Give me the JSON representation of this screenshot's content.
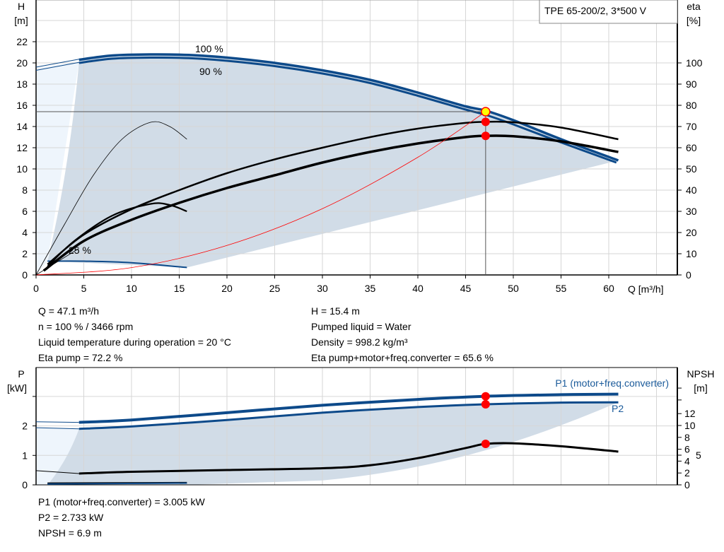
{
  "title": "TPE 65-200/2, 3*500 V",
  "chart_data": [
    {
      "type": "line",
      "xlabel": "Q [m³/h]",
      "ylabel": "H\n[m]",
      "y2label": "eta\n[%]",
      "xlim": [
        0,
        67.2
      ],
      "ylim": [
        0,
        25.9
      ],
      "y2lim": [
        0,
        129.5
      ],
      "xticks": [
        0,
        5,
        10,
        15,
        20,
        25,
        30,
        35,
        40,
        45,
        50,
        55,
        60
      ],
      "yticks": [
        0,
        2,
        4,
        6,
        8,
        10,
        12,
        14,
        16,
        18,
        20,
        22
      ],
      "y2ticks": [
        0,
        10,
        20,
        30,
        40,
        50,
        60,
        70,
        80,
        90,
        100
      ],
      "grid": true,
      "annotations": [
        "100 %",
        "90 %",
        "25 %"
      ],
      "series": [
        {
          "id": "head-100",
          "axis": "H",
          "x": [
            4.5,
            8,
            12,
            16,
            20,
            25,
            30,
            35,
            40,
            45,
            47.1,
            50,
            55,
            61
          ],
          "y": [
            20.3,
            20.7,
            20.8,
            20.75,
            20.5,
            20.0,
            19.3,
            18.4,
            17.2,
            15.9,
            15.5,
            14.6,
            12.8,
            10.8
          ]
        },
        {
          "id": "head-90",
          "axis": "H",
          "x": [
            4.5,
            8,
            12,
            16,
            20,
            25,
            30,
            35,
            40,
            45,
            47.1,
            50,
            55,
            60.8
          ],
          "y": [
            20.0,
            20.4,
            20.5,
            20.45,
            20.2,
            19.7,
            19.0,
            18.1,
            16.9,
            15.6,
            15.1,
            14.2,
            12.5,
            10.6
          ]
        },
        {
          "id": "head-25",
          "axis": "H",
          "x": [
            1.2,
            5,
            10,
            15.8
          ],
          "y": [
            1.3,
            1.3,
            1.15,
            0.7
          ]
        },
        {
          "id": "eta-pump",
          "axis": "eta",
          "x": [
            1.2,
            5,
            10,
            15,
            20,
            25,
            30,
            35,
            40,
            45,
            47.1,
            50,
            55,
            61
          ],
          "y": [
            5,
            19,
            31,
            40,
            48,
            54.5,
            60,
            65,
            69,
            71.7,
            72.2,
            72,
            69.5,
            64
          ]
        },
        {
          "id": "eta-total",
          "axis": "eta",
          "x": [
            0.8,
            5,
            10,
            15,
            20,
            25,
            30,
            35,
            40,
            45,
            47.1,
            50,
            55,
            61
          ],
          "y": [
            2,
            16,
            26,
            34,
            41,
            47,
            53,
            58,
            62,
            65,
            65.6,
            65.4,
            63,
            58
          ]
        },
        {
          "id": "eta-25-pump",
          "axis": "eta",
          "x": [
            0,
            3,
            6,
            9,
            12,
            14,
            15.8
          ],
          "y": [
            0,
            24,
            47,
            64,
            72,
            70,
            64
          ]
        },
        {
          "id": "eta-25-total",
          "axis": "eta",
          "x": [
            1.2,
            4,
            8,
            12,
            14,
            15.8
          ],
          "y": [
            4,
            16,
            28,
            33.5,
            33,
            30
          ]
        },
        {
          "id": "system-curve",
          "axis": "H",
          "x": [
            0,
            10,
            20,
            30,
            40,
            47.1
          ],
          "y": [
            0,
            0.69,
            2.78,
            6.25,
            11.1,
            15.4
          ]
        }
      ],
      "operating_point": {
        "Q": 47.1,
        "H": 15.4,
        "eta_pump": 72.2,
        "eta_total": 65.6
      }
    },
    {
      "type": "line",
      "xlabel": "",
      "ylabel": "P\n[kW]",
      "y2label": "NPSH\n[m]",
      "xlim": [
        0,
        67.2
      ],
      "ylim": [
        0,
        3.95
      ],
      "y2lim": [
        0,
        19.6
      ],
      "yticks": [
        0,
        1,
        2,
        3
      ],
      "yticklabels": [
        "0",
        "1",
        "2",
        ""
      ],
      "y2ticks": [
        0,
        2,
        4,
        5,
        6,
        8,
        10,
        12
      ],
      "grid": true,
      "series": [
        {
          "id": "P1",
          "name": "P1 (motor+freq.converter)",
          "axis": "P",
          "x": [
            4.5,
            10,
            20,
            30,
            40,
            47.1,
            55,
            61
          ],
          "y": [
            2.12,
            2.2,
            2.45,
            2.7,
            2.9,
            3.005,
            3.06,
            3.08
          ]
        },
        {
          "id": "P2",
          "name": "P2",
          "axis": "P",
          "x": [
            4.5,
            10,
            20,
            30,
            40,
            47.1,
            55,
            61
          ],
          "y": [
            1.9,
            1.98,
            2.2,
            2.45,
            2.64,
            2.733,
            2.79,
            2.8
          ]
        },
        {
          "id": "NPSH",
          "axis": "NPSH",
          "x": [
            4.5,
            10,
            20,
            30,
            35,
            40,
            45,
            47.1,
            50,
            55,
            61
          ],
          "y": [
            1.9,
            2.2,
            2.5,
            2.8,
            3.3,
            4.5,
            6.2,
            6.9,
            7.0,
            6.5,
            5.6
          ]
        },
        {
          "id": "P-25",
          "axis": "P",
          "x": [
            1.2,
            8,
            15.8
          ],
          "y": [
            0.05,
            0.06,
            0.07
          ]
        }
      ],
      "operating_point": {
        "Q": 47.1,
        "P1": 3.005,
        "P2": 2.733,
        "NPSH": 6.9
      }
    }
  ],
  "info": {
    "left": [
      "Q = 47.1 m³/h",
      "n = 100 % / 3466 rpm",
      "Liquid temperature during operation = 20 °C",
      "Eta pump = 72.2 %"
    ],
    "right": [
      "H = 15.4 m",
      "Pumped liquid = Water",
      "Density = 998.2 kg/m³",
      "Eta pump+motor+freq.converter = 65.6 %"
    ],
    "bottom": [
      "P1 (motor+freq.converter) = 3.005 kW",
      "P2 = 2.733 kW",
      "NPSH = 6.9 m"
    ]
  },
  "colors": {
    "blue": "#0d4a8a",
    "shade": "#d1dce7",
    "lightshade": "#eef5fc",
    "grid": "#d6d6d6",
    "red": "#ff0000",
    "yellow": "#ffff00"
  }
}
